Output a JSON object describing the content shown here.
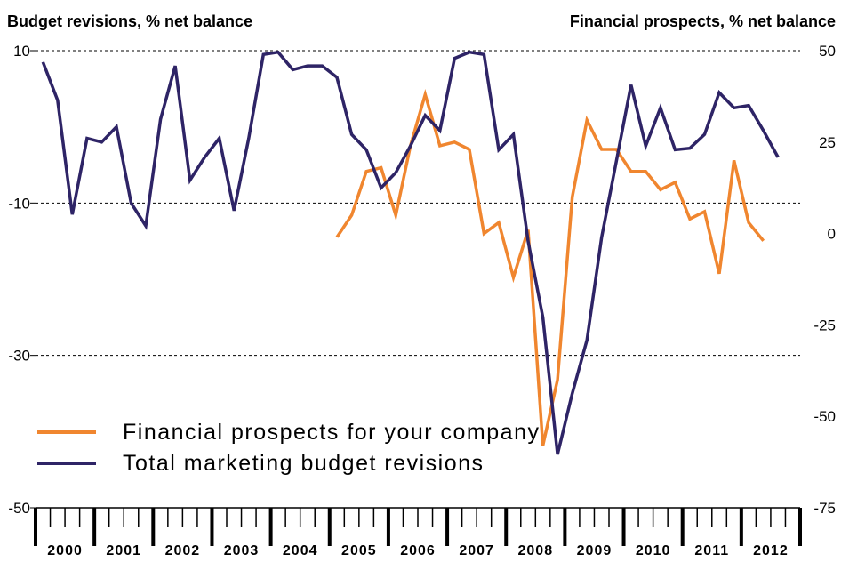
{
  "chart_data": {
    "type": "line",
    "left_axis_title": "Budget revisions, % net balance",
    "right_axis_title": "Financial prospects, % net balance",
    "left_axis": {
      "range": [
        -50,
        10
      ],
      "ticks": [
        "10",
        "-10",
        "-30",
        "-50"
      ],
      "tick_values": [
        10,
        -10,
        -30,
        -50
      ]
    },
    "right_axis": {
      "range": [
        -75,
        50
      ],
      "ticks": [
        "50",
        "25",
        "0",
        "-25",
        "-50",
        "-75"
      ],
      "tick_values": [
        50,
        25,
        0,
        -25,
        -50,
        -75
      ]
    },
    "grid": "dashed horizontal at left-axis ticks",
    "years": [
      "2000",
      "2001",
      "2002",
      "2003",
      "2004",
      "2005",
      "2006",
      "2007",
      "2008",
      "2009",
      "2010",
      "2011",
      "2012"
    ],
    "legend_position": "bottom-left",
    "series": [
      {
        "name": "Financial prospects for your company",
        "axis": "right",
        "color": "#f0862f",
        "start": "2005-Q1",
        "values": [
          -1,
          5,
          17,
          18,
          5,
          24,
          38,
          24,
          25,
          23,
          0,
          3,
          -12,
          1,
          -58,
          -40,
          10,
          31,
          23,
          23,
          17,
          17,
          12,
          14,
          4,
          6,
          -11,
          20,
          3,
          -2
        ]
      },
      {
        "name": "Total marketing budget revisions",
        "axis": "left",
        "color": "#2e2466",
        "start": "2000-Q1",
        "values": [
          8.5,
          3.5,
          -11.5,
          -1.5,
          -2,
          0,
          -10,
          -13,
          1,
          8,
          -7,
          -4,
          -1.5,
          -11,
          -1.5,
          9.5,
          9.8,
          7.5,
          8,
          8,
          6.5,
          -1,
          -3,
          -8,
          -6,
          -2.5,
          1.5,
          -0.5,
          9,
          9.8,
          9.5,
          -3,
          -1,
          -15,
          -25,
          -43,
          -35,
          -28,
          -14.5,
          -4.5,
          5.5,
          -2.5,
          2.5,
          -3,
          -2.8,
          -1,
          4.5,
          2.5,
          2.8,
          -0.5,
          -4
        ]
      }
    ]
  }
}
